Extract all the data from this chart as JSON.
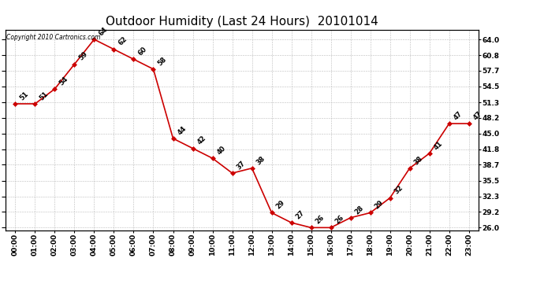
{
  "title": "Outdoor Humidity (Last 24 Hours)  20101014",
  "copyright": "Copyright 2010 Cartronics.com",
  "hours": [
    "00:00",
    "01:00",
    "02:00",
    "03:00",
    "04:00",
    "05:00",
    "06:00",
    "07:00",
    "08:00",
    "09:00",
    "10:00",
    "11:00",
    "12:00",
    "13:00",
    "14:00",
    "15:00",
    "16:00",
    "17:00",
    "18:00",
    "19:00",
    "20:00",
    "21:00",
    "22:00",
    "23:00"
  ],
  "values": [
    51,
    51,
    54,
    59,
    64,
    62,
    60,
    58,
    44,
    42,
    40,
    37,
    38,
    29,
    27,
    26,
    26,
    28,
    29,
    32,
    38,
    41,
    47,
    47
  ],
  "line_color": "#cc0000",
  "marker_color": "#cc0000",
  "bg_color": "#ffffff",
  "grid_color": "#bbbbbb",
  "yticks": [
    26.0,
    29.2,
    32.3,
    35.5,
    38.7,
    41.8,
    45.0,
    48.2,
    51.3,
    54.5,
    57.7,
    60.8,
    64.0
  ],
  "ylim": [
    25.5,
    66.0
  ],
  "title_fontsize": 11,
  "tick_fontsize": 6.5,
  "data_label_fontsize": 6,
  "copyright_fontsize": 5.5
}
